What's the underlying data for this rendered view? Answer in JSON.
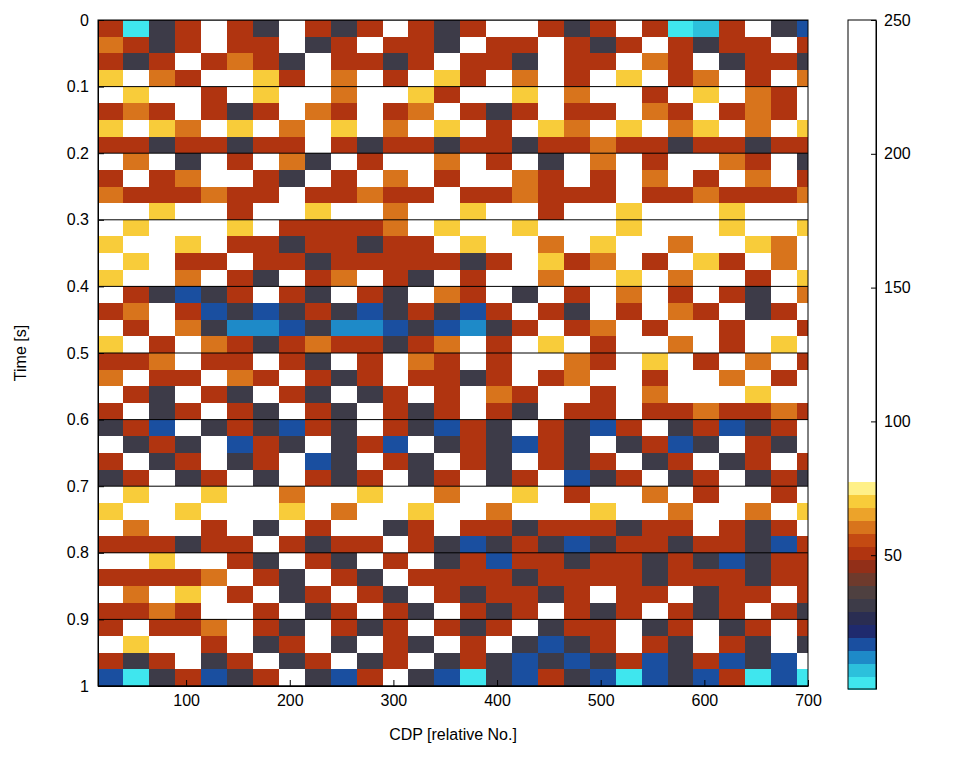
{
  "chart_data": {
    "type": "heatmap",
    "xlabel": "CDP [relative No.]",
    "ylabel": "Time [s]",
    "x": [
      27,
      52,
      77,
      102,
      127,
      152,
      177,
      202,
      227,
      252,
      277,
      302,
      327,
      352,
      377,
      402,
      427,
      452,
      477,
      502,
      527,
      552,
      577,
      602,
      627,
      652,
      677,
      702
    ],
    "y": [
      0.0125,
      0.0375,
      0.0625,
      0.0875,
      0.1125,
      0.1375,
      0.1625,
      0.1875,
      0.2125,
      0.2375,
      0.2625,
      0.2875,
      0.3125,
      0.3375,
      0.3625,
      0.3875,
      0.4125,
      0.4375,
      0.4625,
      0.4875,
      0.5125,
      0.5375,
      0.5625,
      0.5875,
      0.6125,
      0.6375,
      0.6625,
      0.6875,
      0.7125,
      0.7375,
      0.7625,
      0.7875,
      0.8125,
      0.8375,
      0.8625,
      0.8875,
      0.9125,
      0.9375,
      0.9625,
      0.9875
    ],
    "values": [
      [
        50,
        4,
        32,
        50,
        190,
        50,
        32,
        210,
        50,
        32,
        50,
        170,
        50,
        32,
        50,
        200,
        230,
        50,
        32,
        50,
        180,
        50,
        4,
        6,
        50,
        190,
        32,
        16
      ],
      [
        60,
        50,
        32,
        50,
        180,
        50,
        50,
        200,
        32,
        50,
        190,
        50,
        50,
        32,
        210,
        50,
        50,
        170,
        50,
        32,
        50,
        200,
        50,
        32,
        50,
        50,
        190,
        50
      ],
      [
        50,
        32,
        50,
        200,
        50,
        60,
        50,
        32,
        190,
        50,
        50,
        32,
        50,
        180,
        50,
        50,
        32,
        210,
        50,
        50,
        190,
        60,
        50,
        170,
        32,
        50,
        50,
        32
      ],
      [
        70,
        210,
        60,
        50,
        190,
        230,
        70,
        50,
        200,
        60,
        220,
        50,
        190,
        70,
        50,
        200,
        60,
        210,
        50,
        180,
        70,
        200,
        50,
        60,
        190,
        50,
        210,
        60
      ],
      [
        230,
        70,
        240,
        220,
        50,
        210,
        70,
        240,
        230,
        60,
        220,
        240,
        70,
        50,
        230,
        220,
        70,
        240,
        60,
        210,
        230,
        50,
        220,
        70,
        210,
        60,
        50,
        200
      ],
      [
        50,
        60,
        50,
        190,
        50,
        32,
        50,
        180,
        60,
        50,
        200,
        50,
        60,
        190,
        50,
        32,
        50,
        200,
        50,
        50,
        180,
        60,
        50,
        190,
        50,
        60,
        50,
        200
      ],
      [
        70,
        220,
        70,
        60,
        230,
        70,
        210,
        60,
        220,
        70,
        230,
        60,
        210,
        70,
        220,
        50,
        230,
        70,
        60,
        210,
        70,
        220,
        60,
        70,
        200,
        60,
        210,
        70
      ],
      [
        50,
        50,
        32,
        50,
        50,
        32,
        50,
        50,
        180,
        50,
        32,
        50,
        50,
        32,
        50,
        50,
        32,
        50,
        50,
        60,
        50,
        50,
        32,
        50,
        50,
        32,
        50,
        50
      ],
      [
        190,
        60,
        200,
        32,
        210,
        50,
        190,
        60,
        32,
        200,
        50,
        210,
        190,
        60,
        200,
        50,
        190,
        32,
        210,
        60,
        200,
        50,
        190,
        210,
        60,
        50,
        200,
        32
      ],
      [
        50,
        200,
        50,
        60,
        210,
        190,
        50,
        32,
        200,
        50,
        190,
        60,
        210,
        50,
        200,
        220,
        60,
        50,
        190,
        50,
        200,
        60,
        210,
        50,
        190,
        60,
        200,
        50
      ],
      [
        60,
        50,
        50,
        50,
        60,
        50,
        50,
        180,
        50,
        50,
        60,
        50,
        50,
        190,
        50,
        50,
        60,
        50,
        50,
        50,
        180,
        50,
        50,
        60,
        50,
        50,
        50,
        60
      ],
      [
        220,
        240,
        70,
        230,
        210,
        50,
        240,
        230,
        70,
        220,
        240,
        60,
        230,
        220,
        70,
        240,
        230,
        50,
        220,
        240,
        70,
        230,
        240,
        220,
        70,
        240,
        230,
        220
      ],
      [
        240,
        70,
        230,
        220,
        240,
        70,
        210,
        50,
        50,
        50,
        50,
        60,
        230,
        70,
        240,
        220,
        70,
        240,
        230,
        220,
        70,
        240,
        230,
        220,
        70,
        240,
        230,
        70
      ],
      [
        70,
        220,
        230,
        70,
        210,
        50,
        50,
        32,
        50,
        50,
        32,
        50,
        50,
        200,
        70,
        220,
        210,
        60,
        230,
        70,
        220,
        230,
        60,
        210,
        220,
        70,
        60,
        230
      ],
      [
        210,
        70,
        200,
        50,
        50,
        190,
        50,
        50,
        32,
        50,
        50,
        50,
        50,
        50,
        32,
        50,
        200,
        70,
        50,
        60,
        210,
        50,
        200,
        70,
        50,
        210,
        60,
        220
      ],
      [
        70,
        220,
        210,
        60,
        200,
        50,
        32,
        190,
        50,
        60,
        210,
        50,
        32,
        200,
        50,
        210,
        220,
        60,
        230,
        210,
        70,
        220,
        60,
        210,
        200,
        50,
        220,
        70
      ],
      [
        200,
        50,
        32,
        16,
        32,
        50,
        190,
        50,
        32,
        200,
        50,
        32,
        190,
        60,
        50,
        200,
        32,
        210,
        50,
        200,
        60,
        210,
        50,
        200,
        50,
        32,
        210,
        60
      ],
      [
        50,
        60,
        190,
        50,
        16,
        32,
        16,
        32,
        50,
        32,
        16,
        32,
        50,
        32,
        16,
        50,
        190,
        50,
        32,
        200,
        50,
        210,
        60,
        50,
        200,
        32,
        50,
        210
      ],
      [
        200,
        50,
        190,
        60,
        32,
        14,
        12,
        16,
        32,
        14,
        12,
        16,
        32,
        16,
        14,
        32,
        50,
        200,
        50,
        60,
        210,
        50,
        200,
        220,
        50,
        210,
        200,
        50
      ],
      [
        70,
        210,
        50,
        200,
        60,
        50,
        32,
        50,
        60,
        50,
        50,
        32,
        50,
        60,
        200,
        50,
        210,
        70,
        220,
        50,
        210,
        220,
        60,
        210,
        50,
        220,
        70,
        210
      ],
      [
        50,
        50,
        60,
        200,
        50,
        50,
        190,
        50,
        32,
        200,
        50,
        190,
        60,
        50,
        210,
        50,
        200,
        220,
        60,
        50,
        210,
        70,
        220,
        50,
        200,
        60,
        210,
        50
      ],
      [
        60,
        200,
        50,
        50,
        190,
        60,
        50,
        200,
        50,
        32,
        50,
        190,
        50,
        50,
        32,
        50,
        200,
        50,
        60,
        210,
        220,
        50,
        210,
        220,
        60,
        210,
        50,
        220
      ],
      [
        190,
        50,
        32,
        200,
        50,
        32,
        190,
        50,
        32,
        200,
        32,
        50,
        190,
        50,
        210,
        60,
        50,
        220,
        210,
        50,
        220,
        60,
        230,
        220,
        240,
        70,
        230,
        220
      ],
      [
        50,
        190,
        32,
        50,
        200,
        50,
        32,
        190,
        50,
        32,
        200,
        50,
        32,
        50,
        190,
        50,
        32,
        200,
        50,
        50,
        190,
        50,
        50,
        60,
        50,
        50,
        60,
        50
      ],
      [
        32,
        50,
        16,
        180,
        32,
        50,
        32,
        16,
        50,
        32,
        180,
        50,
        32,
        16,
        50,
        32,
        190,
        50,
        32,
        16,
        50,
        180,
        32,
        50,
        16,
        32,
        50,
        190
      ],
      [
        180,
        32,
        50,
        32,
        190,
        16,
        50,
        32,
        180,
        32,
        50,
        16,
        190,
        32,
        50,
        32,
        16,
        50,
        32,
        180,
        32,
        50,
        16,
        32,
        190,
        50,
        32,
        180
      ],
      [
        50,
        190,
        32,
        50,
        180,
        32,
        50,
        190,
        16,
        32,
        180,
        50,
        32,
        190,
        50,
        32,
        180,
        50,
        32,
        50,
        190,
        32,
        50,
        180,
        32,
        50,
        190,
        50
      ],
      [
        32,
        50,
        190,
        32,
        50,
        180,
        32,
        190,
        50,
        32,
        50,
        190,
        32,
        50,
        180,
        32,
        50,
        190,
        16,
        32,
        50,
        180,
        32,
        50,
        190,
        32,
        50,
        32
      ],
      [
        230,
        70,
        240,
        220,
        70,
        230,
        240,
        60,
        220,
        230,
        70,
        240,
        220,
        60,
        230,
        240,
        70,
        220,
        50,
        230,
        220,
        60,
        230,
        50,
        220,
        230,
        50,
        220
      ],
      [
        70,
        230,
        240,
        70,
        220,
        230,
        240,
        70,
        230,
        60,
        220,
        240,
        70,
        230,
        220,
        60,
        240,
        230,
        220,
        70,
        230,
        240,
        60,
        220,
        230,
        60,
        240,
        70
      ],
      [
        210,
        60,
        220,
        200,
        50,
        210,
        32,
        200,
        50,
        210,
        200,
        32,
        50,
        210,
        50,
        50,
        32,
        50,
        50,
        50,
        32,
        50,
        50,
        200,
        50,
        32,
        50,
        210
      ],
      [
        50,
        50,
        50,
        32,
        50,
        50,
        190,
        50,
        32,
        50,
        50,
        190,
        50,
        32,
        16,
        32,
        50,
        32,
        16,
        32,
        50,
        50,
        32,
        50,
        50,
        32,
        16,
        50
      ],
      [
        230,
        240,
        70,
        220,
        210,
        50,
        32,
        200,
        50,
        32,
        210,
        50,
        200,
        32,
        50,
        16,
        50,
        50,
        32,
        50,
        50,
        32,
        50,
        32,
        16,
        32,
        50,
        50
      ],
      [
        50,
        50,
        50,
        50,
        60,
        200,
        50,
        32,
        190,
        50,
        32,
        200,
        50,
        50,
        50,
        50,
        32,
        50,
        50,
        50,
        50,
        32,
        50,
        50,
        50,
        32,
        50,
        50
      ],
      [
        220,
        60,
        230,
        70,
        210,
        50,
        200,
        32,
        50,
        190,
        50,
        32,
        200,
        50,
        32,
        50,
        50,
        32,
        50,
        200,
        50,
        50,
        190,
        32,
        50,
        50,
        200,
        50
      ],
      [
        50,
        50,
        60,
        50,
        210,
        220,
        50,
        200,
        32,
        50,
        190,
        50,
        32,
        200,
        50,
        32,
        50,
        190,
        50,
        32,
        50,
        200,
        50,
        32,
        50,
        190,
        50,
        32
      ],
      [
        50,
        210,
        50,
        50,
        60,
        200,
        50,
        32,
        190,
        50,
        32,
        50,
        200,
        50,
        32,
        50,
        190,
        32,
        50,
        50,
        200,
        32,
        50,
        190,
        32,
        50,
        200,
        50
      ],
      [
        220,
        70,
        230,
        210,
        50,
        200,
        32,
        50,
        190,
        32,
        200,
        50,
        32,
        190,
        50,
        200,
        32,
        16,
        32,
        50,
        190,
        50,
        32,
        200,
        50,
        32,
        190,
        32
      ],
      [
        50,
        32,
        50,
        190,
        32,
        50,
        180,
        32,
        50,
        190,
        32,
        50,
        180,
        32,
        50,
        32,
        16,
        32,
        16,
        32,
        50,
        16,
        32,
        50,
        16,
        32,
        16,
        180
      ],
      [
        16,
        4,
        32,
        50,
        16,
        32,
        50,
        180,
        32,
        16,
        50,
        180,
        32,
        16,
        4,
        32,
        16,
        50,
        32,
        16,
        4,
        16,
        32,
        16,
        50,
        4,
        16,
        4
      ]
    ],
    "xlim": [
      15,
      700
    ],
    "ylim": [
      0,
      1
    ],
    "xticks": [
      100,
      200,
      300,
      400,
      500,
      600,
      700
    ],
    "yticks": [
      0,
      0.1,
      0.2,
      0.3,
      0.4,
      0.5,
      0.6,
      0.7,
      0.8,
      0.9,
      1
    ],
    "grid": true,
    "zlim": [
      0,
      250
    ],
    "zticks": [
      50,
      100,
      150,
      200,
      250
    ]
  }
}
